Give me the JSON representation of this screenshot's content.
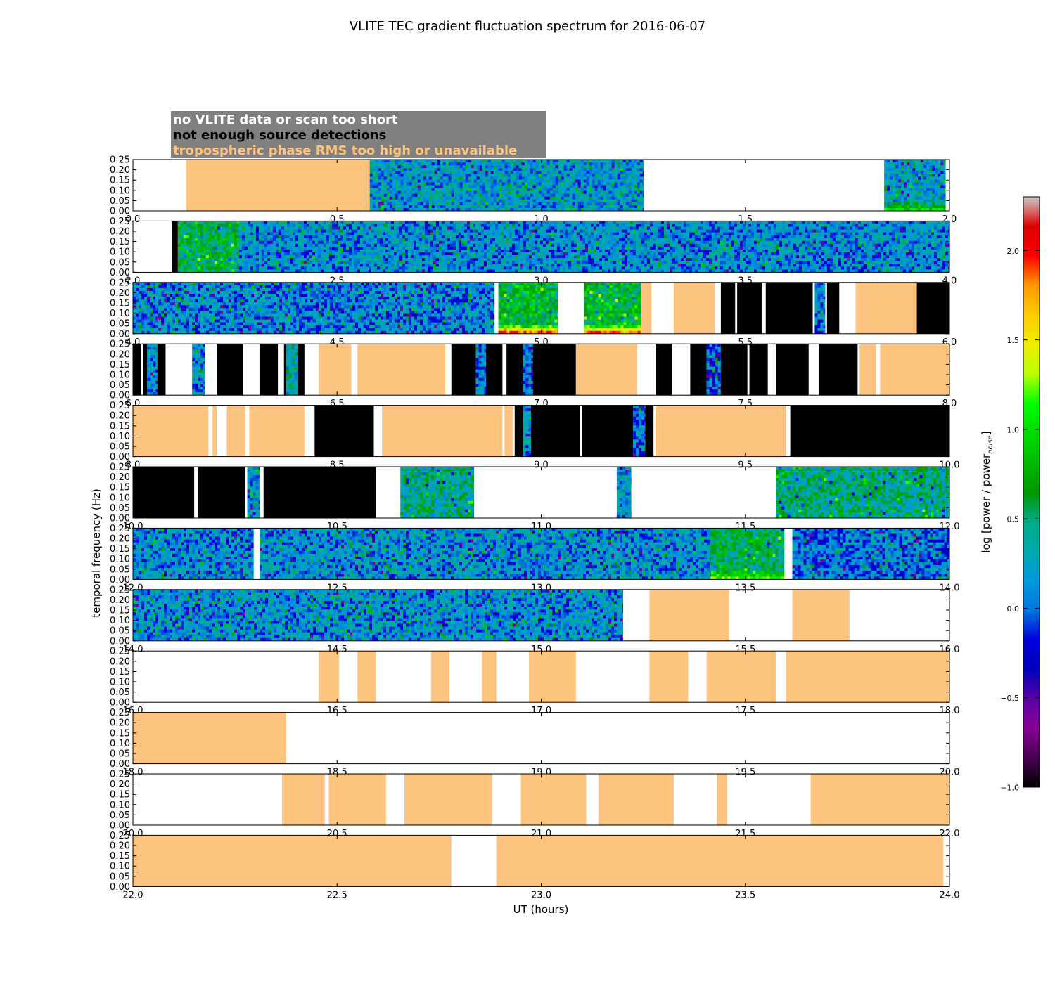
{
  "chart_data": {
    "type": "heatmap",
    "title": "VLITE TEC gradient fluctuation spectrum for 2016-06-07",
    "xlabel": "UT (hours)",
    "ylabel": "temporal frequency (Hz)",
    "ylim": [
      0,
      0.25
    ],
    "y_ticks": [
      "0.00",
      "0.05",
      "0.10",
      "0.15",
      "0.20",
      "0.25"
    ],
    "legend_position": "top-left",
    "legend": [
      {
        "name": "no VLITE data or scan too short",
        "color": "#ffffff"
      },
      {
        "name": "not enough source detections",
        "color": "#000000"
      },
      {
        "name": "tropospheric phase RMS too high or unavailable",
        "color": "#fdc47f"
      }
    ],
    "colorbar": {
      "label": "log [power / power",
      "label_sub": "noise",
      "label_end": "]",
      "min": -1.0,
      "max": 2.3,
      "ticks": [
        "−1.0",
        "−0.5",
        "0.0",
        "0.5",
        "1.0",
        "1.5",
        "2.0"
      ],
      "tick_values": [
        -1.0,
        -0.5,
        0.0,
        0.5,
        1.0,
        1.5,
        2.0
      ],
      "colormap": "nipy_spectral"
    },
    "category_colors": {
      "none": "#ffffff",
      "black": "#000000",
      "tropo": "#fdc47f"
    },
    "panels": [
      {
        "xlim": [
          0.0,
          2.0
        ],
        "ticks": [
          "0.0",
          "0.5",
          "1.0",
          "1.5",
          "2.0"
        ],
        "segments": [
          {
            "start": 0.13,
            "end": 0.58,
            "kind": "tropo"
          },
          {
            "start": 0.58,
            "end": 1.25,
            "kind": "data",
            "level": 0.2
          },
          {
            "start": 1.84,
            "end": 1.99,
            "kind": "data",
            "level": 0.25,
            "low_power": 0.9
          }
        ]
      },
      {
        "xlim": [
          2.0,
          4.0
        ],
        "ticks": [
          "2.0",
          "2.5",
          "3.0",
          "3.5",
          "4.0"
        ],
        "segments": [
          {
            "start": 2.095,
            "end": 2.11,
            "kind": "black"
          },
          {
            "start": 2.11,
            "end": 2.26,
            "kind": "data",
            "level": 0.6
          },
          {
            "start": 2.26,
            "end": 4.0,
            "kind": "data",
            "level": 0.15
          }
        ]
      },
      {
        "xlim": [
          4.0,
          6.0
        ],
        "ticks": [
          "4.0",
          "4.5",
          "5.0",
          "5.5",
          "6.0"
        ],
        "segments": [
          {
            "start": 4.0,
            "end": 4.885,
            "kind": "data",
            "level": 0.1
          },
          {
            "start": 4.895,
            "end": 5.04,
            "kind": "data",
            "level": 0.7,
            "low_power": 1.9
          },
          {
            "start": 5.105,
            "end": 5.245,
            "kind": "data",
            "level": 0.7,
            "low_power": 1.8
          },
          {
            "start": 5.245,
            "end": 5.27,
            "kind": "tropo"
          },
          {
            "start": 5.325,
            "end": 5.425,
            "kind": "tropo"
          },
          {
            "start": 5.44,
            "end": 5.475,
            "kind": "black"
          },
          {
            "start": 5.48,
            "end": 5.54,
            "kind": "black"
          },
          {
            "start": 5.55,
            "end": 5.665,
            "kind": "black"
          },
          {
            "start": 5.67,
            "end": 5.695,
            "kind": "data",
            "level": 0.1
          },
          {
            "start": 5.7,
            "end": 5.73,
            "kind": "black"
          },
          {
            "start": 5.77,
            "end": 5.92,
            "kind": "tropo"
          },
          {
            "start": 5.92,
            "end": 6.0,
            "kind": "black"
          }
        ]
      },
      {
        "xlim": [
          6.0,
          8.0
        ],
        "ticks": [
          "6.0",
          "6.5",
          "7.0",
          "7.5",
          "8.0"
        ],
        "segments": [
          {
            "start": 6.0,
            "end": 6.02,
            "kind": "black"
          },
          {
            "start": 6.025,
            "end": 6.035,
            "kind": "black"
          },
          {
            "start": 6.035,
            "end": 6.06,
            "kind": "data",
            "level": 0.1
          },
          {
            "start": 6.06,
            "end": 6.08,
            "kind": "black"
          },
          {
            "start": 6.145,
            "end": 6.175,
            "kind": "data",
            "level": 0.1
          },
          {
            "start": 6.205,
            "end": 6.27,
            "kind": "black"
          },
          {
            "start": 6.31,
            "end": 6.355,
            "kind": "black"
          },
          {
            "start": 6.37,
            "end": 6.375,
            "kind": "black"
          },
          {
            "start": 6.375,
            "end": 6.405,
            "kind": "data",
            "level": 0.3
          },
          {
            "start": 6.405,
            "end": 6.42,
            "kind": "black"
          },
          {
            "start": 6.455,
            "end": 6.535,
            "kind": "tropo"
          },
          {
            "start": 6.55,
            "end": 6.765,
            "kind": "tropo"
          },
          {
            "start": 6.78,
            "end": 6.84,
            "kind": "black"
          },
          {
            "start": 6.84,
            "end": 6.865,
            "kind": "data",
            "level": 0.1
          },
          {
            "start": 6.865,
            "end": 6.905,
            "kind": "black"
          },
          {
            "start": 6.915,
            "end": 6.955,
            "kind": "black"
          },
          {
            "start": 6.955,
            "end": 6.98,
            "kind": "data",
            "level": 0.0
          },
          {
            "start": 6.98,
            "end": 7.085,
            "kind": "black"
          },
          {
            "start": 7.085,
            "end": 7.235,
            "kind": "tropo"
          },
          {
            "start": 7.28,
            "end": 7.32,
            "kind": "black"
          },
          {
            "start": 7.365,
            "end": 7.405,
            "kind": "black"
          },
          {
            "start": 7.405,
            "end": 7.44,
            "kind": "data",
            "level": 0.0
          },
          {
            "start": 7.44,
            "end": 7.505,
            "kind": "black"
          },
          {
            "start": 7.51,
            "end": 7.555,
            "kind": "black"
          },
          {
            "start": 7.575,
            "end": 7.655,
            "kind": "black"
          },
          {
            "start": 7.68,
            "end": 7.775,
            "kind": "black"
          },
          {
            "start": 7.78,
            "end": 7.82,
            "kind": "tropo"
          },
          {
            "start": 7.83,
            "end": 8.0,
            "kind": "tropo"
          }
        ]
      },
      {
        "xlim": [
          8.0,
          10.0
        ],
        "ticks": [
          "8.0",
          "8.5",
          "9.0",
          "9.5",
          "10.0"
        ],
        "segments": [
          {
            "start": 8.0,
            "end": 8.185,
            "kind": "tropo"
          },
          {
            "start": 8.195,
            "end": 8.205,
            "kind": "tropo"
          },
          {
            "start": 8.23,
            "end": 8.275,
            "kind": "tropo"
          },
          {
            "start": 8.285,
            "end": 8.42,
            "kind": "tropo"
          },
          {
            "start": 8.445,
            "end": 8.59,
            "kind": "black"
          },
          {
            "start": 8.61,
            "end": 8.905,
            "kind": "tropo"
          },
          {
            "start": 8.91,
            "end": 8.93,
            "kind": "tropo"
          },
          {
            "start": 8.935,
            "end": 8.955,
            "kind": "black"
          },
          {
            "start": 8.955,
            "end": 8.975,
            "kind": "data",
            "level": 0.2
          },
          {
            "start": 8.975,
            "end": 9.095,
            "kind": "black"
          },
          {
            "start": 9.1,
            "end": 9.225,
            "kind": "black"
          },
          {
            "start": 9.225,
            "end": 9.255,
            "kind": "data",
            "level": 0.0
          },
          {
            "start": 9.255,
            "end": 9.275,
            "kind": "black"
          },
          {
            "start": 9.28,
            "end": 9.6,
            "kind": "tropo"
          },
          {
            "start": 9.61,
            "end": 10.0,
            "kind": "black"
          }
        ]
      },
      {
        "xlim": [
          10.0,
          12.0
        ],
        "ticks": [
          "10.0",
          "10.5",
          "11.0",
          "11.5",
          "12.0"
        ],
        "segments": [
          {
            "start": 10.0,
            "end": 10.15,
            "kind": "black"
          },
          {
            "start": 10.16,
            "end": 10.275,
            "kind": "black"
          },
          {
            "start": 10.28,
            "end": 10.31,
            "kind": "data",
            "level": 0.2
          },
          {
            "start": 10.32,
            "end": 10.595,
            "kind": "black"
          },
          {
            "start": 10.655,
            "end": 10.835,
            "kind": "data",
            "level": 0.4
          },
          {
            "start": 11.185,
            "end": 11.22,
            "kind": "data",
            "level": 0.2
          },
          {
            "start": 11.575,
            "end": 12.0,
            "kind": "data",
            "level": 0.45
          }
        ]
      },
      {
        "xlim": [
          12.0,
          14.0
        ],
        "ticks": [
          "12.0",
          "12.5",
          "13.0",
          "13.5",
          "14.0"
        ],
        "segments": [
          {
            "start": 12.0,
            "end": 12.295,
            "kind": "data",
            "level": 0.15
          },
          {
            "start": 12.31,
            "end": 13.415,
            "kind": "data",
            "level": 0.15
          },
          {
            "start": 13.415,
            "end": 13.595,
            "kind": "data",
            "level": 0.55,
            "low_power": 1.2
          },
          {
            "start": 13.615,
            "end": 14.0,
            "kind": "data",
            "level": 0.05
          }
        ]
      },
      {
        "xlim": [
          14.0,
          16.0
        ],
        "ticks": [
          "14.0",
          "14.5",
          "15.0",
          "15.5",
          "16.0"
        ],
        "segments": [
          {
            "start": 14.0,
            "end": 15.2,
            "kind": "data",
            "level": 0.15
          },
          {
            "start": 15.265,
            "end": 15.46,
            "kind": "tropo"
          },
          {
            "start": 15.615,
            "end": 15.755,
            "kind": "tropo"
          }
        ]
      },
      {
        "xlim": [
          16.0,
          18.0
        ],
        "ticks": [
          "16.0",
          "16.5",
          "17.0",
          "17.5",
          "18.0"
        ],
        "segments": [
          {
            "start": 16.455,
            "end": 16.505,
            "kind": "tropo"
          },
          {
            "start": 16.55,
            "end": 16.595,
            "kind": "tropo"
          },
          {
            "start": 16.73,
            "end": 16.775,
            "kind": "tropo"
          },
          {
            "start": 16.855,
            "end": 16.89,
            "kind": "tropo"
          },
          {
            "start": 16.97,
            "end": 17.085,
            "kind": "tropo"
          },
          {
            "start": 17.265,
            "end": 17.36,
            "kind": "tropo"
          },
          {
            "start": 17.405,
            "end": 17.575,
            "kind": "tropo"
          },
          {
            "start": 17.6,
            "end": 18.0,
            "kind": "tropo"
          }
        ]
      },
      {
        "xlim": [
          18.0,
          20.0
        ],
        "ticks": [
          "18.0",
          "18.5",
          "19.0",
          "19.5",
          "20.0"
        ],
        "segments": [
          {
            "start": 18.0,
            "end": 18.375,
            "kind": "tropo"
          }
        ]
      },
      {
        "xlim": [
          20.0,
          22.0
        ],
        "ticks": [
          "20.0",
          "20.5",
          "21.0",
          "21.5",
          "22.0"
        ],
        "segments": [
          {
            "start": 20.365,
            "end": 20.47,
            "kind": "tropo"
          },
          {
            "start": 20.48,
            "end": 20.62,
            "kind": "tropo"
          },
          {
            "start": 20.665,
            "end": 20.88,
            "kind": "tropo"
          },
          {
            "start": 20.95,
            "end": 21.11,
            "kind": "tropo"
          },
          {
            "start": 21.14,
            "end": 21.325,
            "kind": "tropo"
          },
          {
            "start": 21.43,
            "end": 21.455,
            "kind": "tropo"
          },
          {
            "start": 21.66,
            "end": 22.0,
            "kind": "tropo"
          }
        ]
      },
      {
        "xlim": [
          22.0,
          24.0
        ],
        "ticks": [
          "22.0",
          "22.5",
          "23.0",
          "23.5",
          "24.0"
        ],
        "segments": [
          {
            "start": 22.0,
            "end": 22.78,
            "kind": "tropo"
          },
          {
            "start": 22.89,
            "end": 23.985,
            "kind": "tropo"
          }
        ]
      }
    ]
  }
}
